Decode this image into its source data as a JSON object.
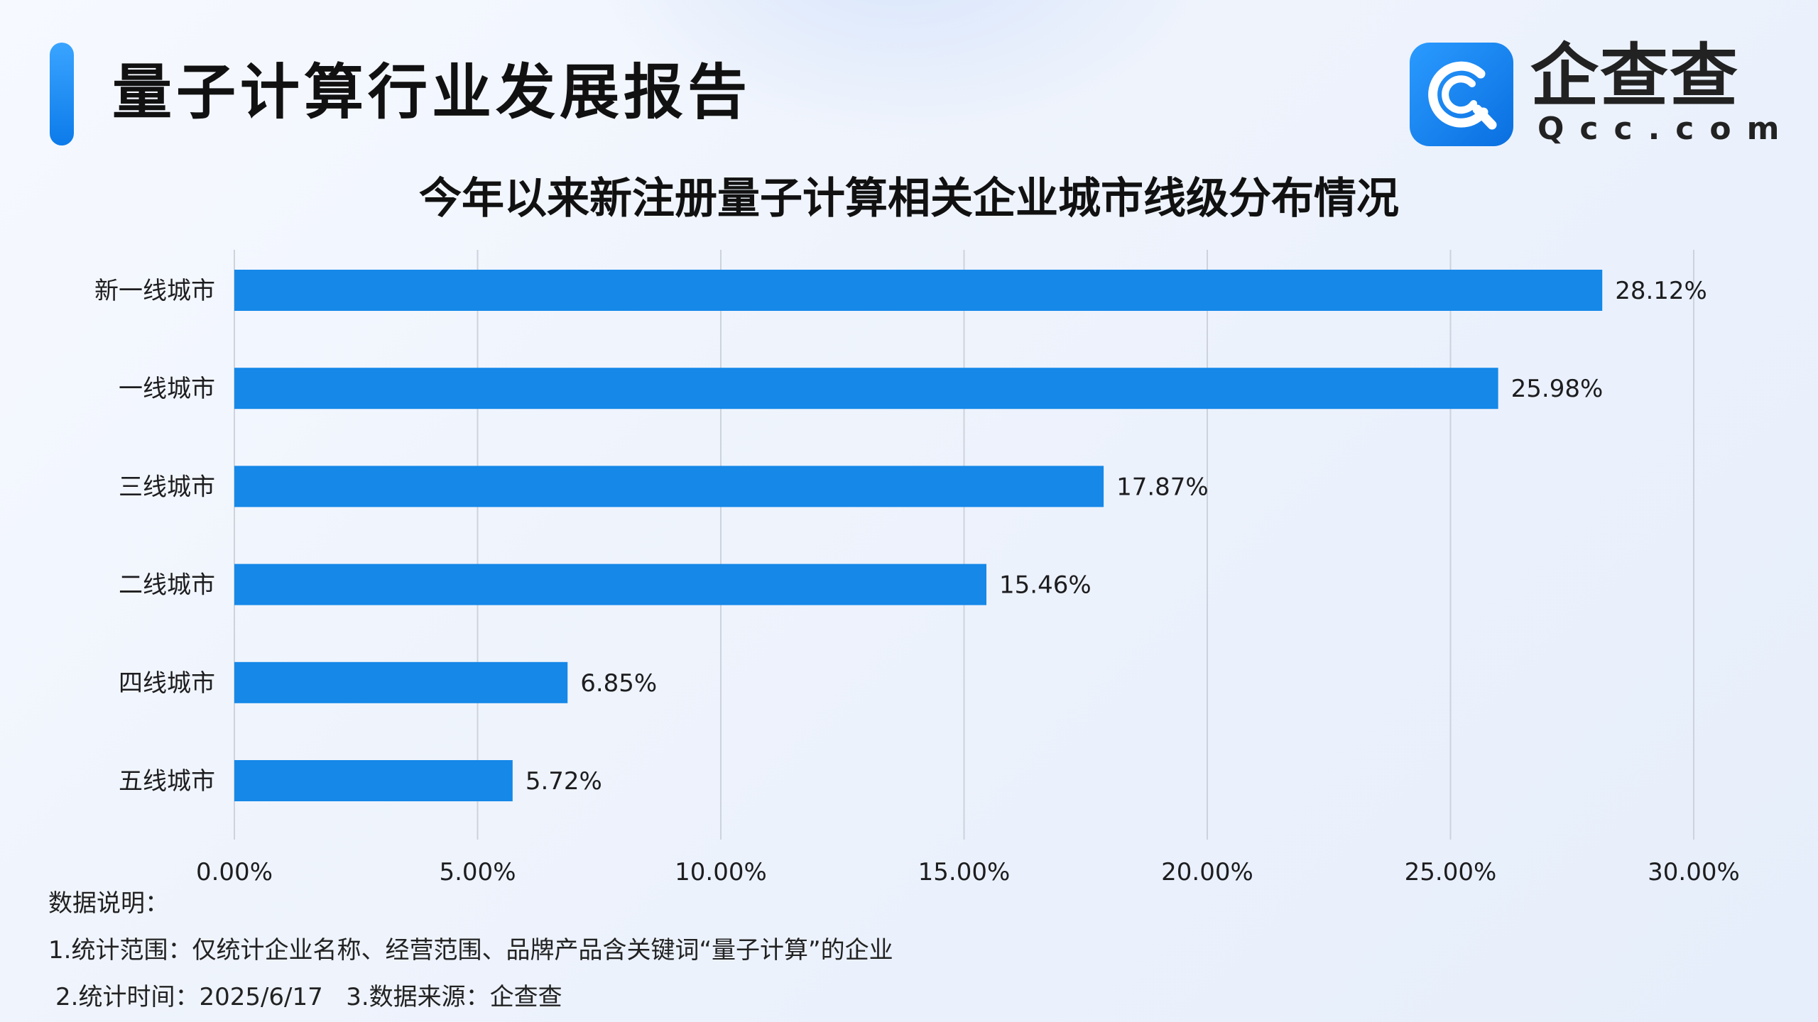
{
  "header": {
    "title": "量子计算行业发展报告",
    "logo_name": "企查查",
    "logo_domain": "Qcc.com",
    "logo_icon": "qcc-logo-icon"
  },
  "chart_data": {
    "type": "bar",
    "orientation": "horizontal",
    "title": "今年以来新注册量子计算相关企业城市线级分布情况",
    "categories": [
      "新一线城市",
      "一线城市",
      "三线城市",
      "二线城市",
      "四线城市",
      "五线城市"
    ],
    "values": [
      28.12,
      25.98,
      17.87,
      15.46,
      6.85,
      5.72
    ],
    "value_labels": [
      "28.12%",
      "25.98%",
      "17.87%",
      "15.46%",
      "6.85%",
      "5.72%"
    ],
    "xlim": [
      0,
      30
    ],
    "x_ticks": [
      0,
      5,
      10,
      15,
      20,
      25,
      30
    ],
    "x_tick_labels": [
      "0.00%",
      "5.00%",
      "10.00%",
      "15.00%",
      "20.00%",
      "25.00%",
      "30.00%"
    ],
    "xlabel": "",
    "ylabel": "",
    "grid": "vertical",
    "legend": "none",
    "bar_color": "#1588e8"
  },
  "notes": {
    "heading": "数据说明：",
    "line1": "1.统计范围：仅统计企业名称、经营范围、品牌产品含关键词“量子计算”的企业",
    "line2": "2.统计时间：2025/6/17   3.数据来源：企查查"
  },
  "colors": {
    "accent": "#0c7bea",
    "gridline": "#cdd3dc",
    "text": "#1d1d1f"
  }
}
